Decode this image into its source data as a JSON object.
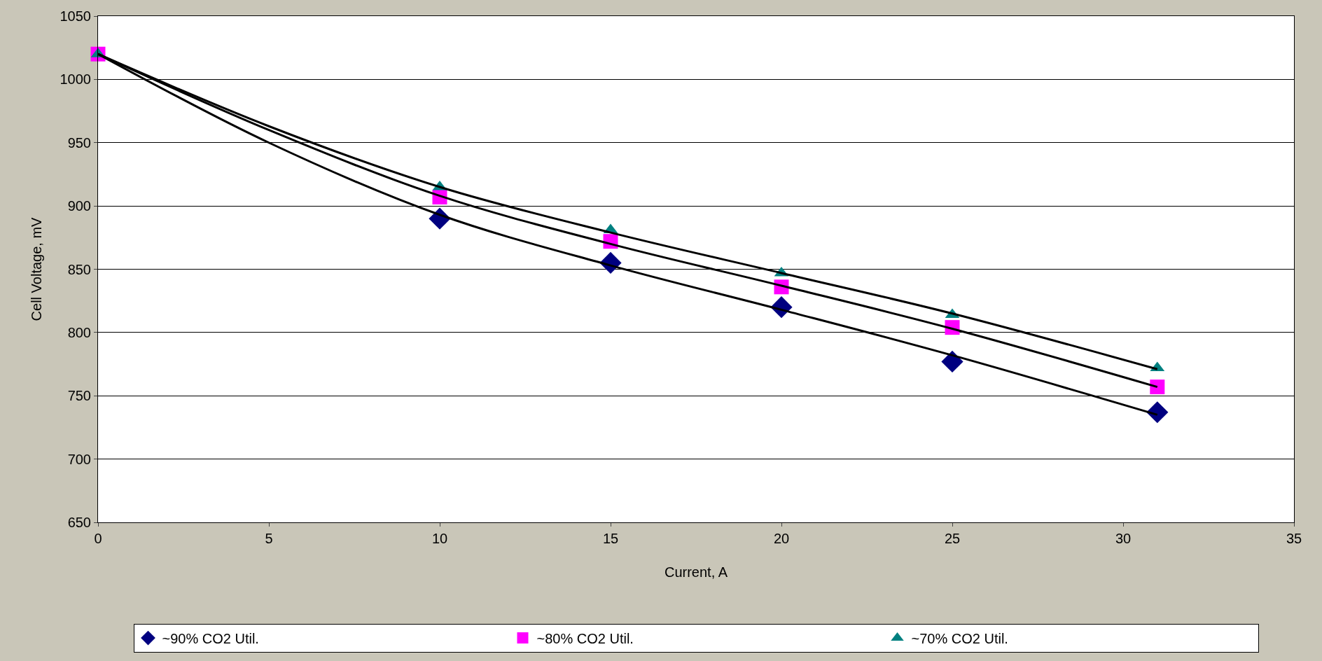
{
  "chart_data": {
    "type": "scatter",
    "xlabel": "Current, A",
    "ylabel": "Cell Voltage, mV",
    "xlim": [
      0,
      35
    ],
    "xticks": [
      0,
      5,
      10,
      15,
      20,
      25,
      30,
      35
    ],
    "ylim": [
      650,
      1050
    ],
    "yticks": [
      650,
      700,
      750,
      800,
      850,
      900,
      950,
      1000,
      1050
    ],
    "grid": "y",
    "legend": "bottom",
    "series": [
      {
        "name": "~90% CO2 Util.",
        "color": "#000080",
        "marker": "diamond",
        "x": [
          10,
          15,
          20,
          25,
          31
        ],
        "values": [
          890,
          855,
          820,
          777,
          737
        ]
      },
      {
        "name": "~80% CO2 Util.",
        "color": "#ff00ff",
        "marker": "square",
        "x": [
          0,
          10,
          15,
          20,
          25,
          31
        ],
        "values": [
          1020,
          907,
          872,
          836,
          804,
          757
        ]
      },
      {
        "name": "~70% CO2 Util.",
        "color": "#008080",
        "marker": "triangle",
        "x": [
          0,
          10,
          15,
          20,
          25,
          31
        ],
        "values": [
          1020,
          915,
          881,
          847,
          814,
          772
        ]
      },
      {
        "type": "line",
        "color": "#000000",
        "marker": "none",
        "x": [
          0,
          5,
          10,
          15,
          20,
          25,
          31
        ],
        "values": [
          1020,
          950,
          893,
          853,
          818,
          782,
          735
        ]
      },
      {
        "type": "line",
        "color": "#000000",
        "marker": "none",
        "x": [
          0,
          5,
          10,
          15,
          20,
          25,
          31
        ],
        "values": [
          1020,
          960,
          908,
          870,
          837,
          803,
          757
        ]
      },
      {
        "type": "line",
        "color": "#000000",
        "marker": "none",
        "x": [
          0,
          5,
          10,
          15,
          20,
          25,
          31
        ],
        "values": [
          1020,
          963,
          915,
          879,
          847,
          815,
          771
        ]
      }
    ]
  }
}
